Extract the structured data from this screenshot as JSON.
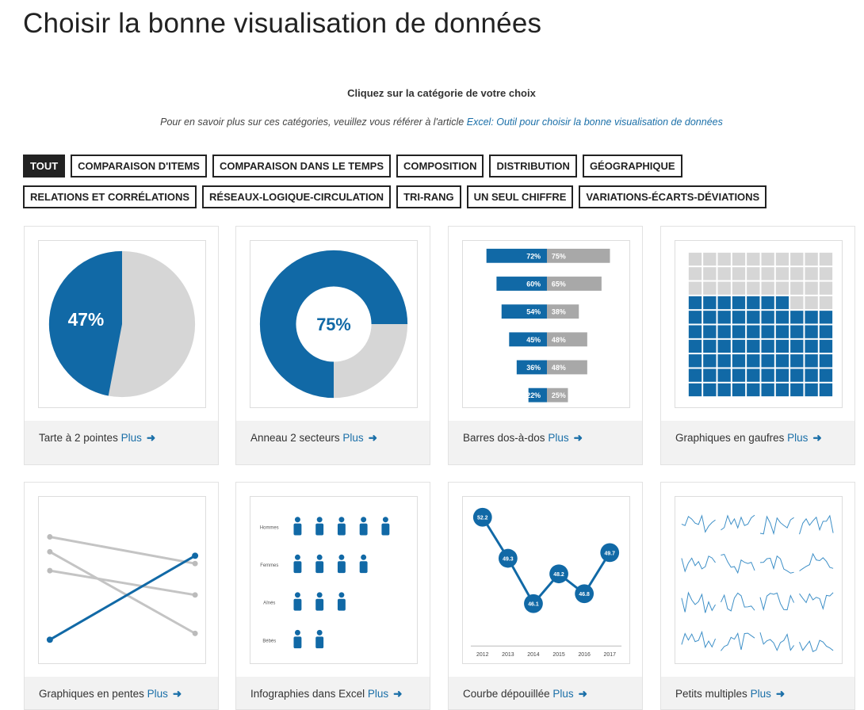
{
  "header": {
    "title": "Choisir la bonne visualisation de données"
  },
  "intro": {
    "prompt": "Cliquez sur la catégorie de votre choix",
    "note": "Pour en savoir plus sur ces catégories, veuillez vous référer à l'article",
    "link": "Excel: Outil pour choisir la bonne visualisation de données"
  },
  "filters": [
    "TOUT",
    "COMPARAISON D'ITEMS",
    "COMPARAISON DANS LE TEMPS",
    "COMPOSITION",
    "DISTRIBUTION",
    "GÉOGRAPHIQUE",
    "RELATIONS ET CORRÉLATIONS",
    "RÉSEAUX-LOGIQUE-CIRCULATION",
    "TRI-RANG",
    "UN SEUL CHIFFRE",
    "VARIATIONS-ÉCARTS-DÉVIATIONS"
  ],
  "cards": [
    {
      "caption": "Tarte à 2 pointes",
      "more": "Plus",
      "thumb": {
        "kind": "pie",
        "value": 47,
        "label": "47%"
      }
    },
    {
      "caption": "Anneau 2 secteurs",
      "more": "Plus",
      "thumb": {
        "kind": "donut",
        "value": 75,
        "label": "75%"
      }
    },
    {
      "caption": "Barres dos-à-dos",
      "more": "Plus",
      "thumb": {
        "kind": "backtoback",
        "left": [
          72,
          60,
          54,
          45,
          36,
          22
        ],
        "left_labels": [
          "72%",
          "60%",
          "54%",
          "45%",
          "36%",
          "22%"
        ],
        "right": [
          75,
          65,
          38,
          48,
          48,
          25
        ],
        "right_labels": [
          "75%",
          "65%",
          "38%",
          "48%",
          "48%",
          "25%"
        ]
      }
    },
    {
      "caption": "Graphiques en gaufres",
      "more": "Plus",
      "thumb": {
        "kind": "waffle"
      }
    },
    {
      "caption": "Graphiques en pentes",
      "more": "Plus",
      "thumb": {
        "kind": "slope"
      }
    },
    {
      "caption": "Infographies dans Excel",
      "more": "Plus",
      "thumb": {
        "kind": "icons",
        "rows": [
          "Hommes",
          "Femmes",
          "Aînés",
          "Bébés"
        ]
      }
    },
    {
      "caption": "Courbe dépouillée",
      "more": "Plus",
      "thumb": {
        "kind": "line",
        "x": [
          "2012",
          "2013",
          "2014",
          "2015",
          "2016",
          "2017"
        ],
        "values": [
          52.2,
          49.3,
          46.1,
          48.2,
          46.8,
          49.7
        ]
      }
    },
    {
      "caption": "Petits multiples",
      "more": "Plus",
      "thumb": {
        "kind": "multiples"
      }
    }
  ]
}
